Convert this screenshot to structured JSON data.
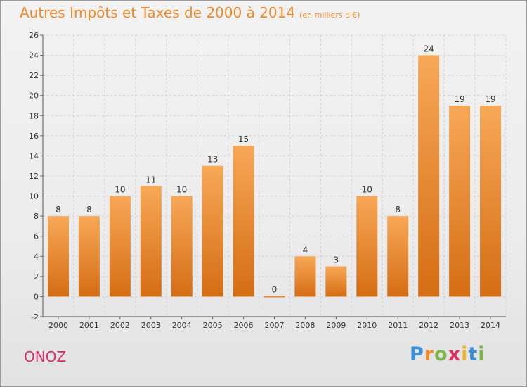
{
  "header": {
    "title": "Autres Impôts et Taxes de 2000 à 2014",
    "subtitle": "(en milliers d'€)"
  },
  "footer": {
    "place": "ONOZ",
    "logo": "Proxiti"
  },
  "colors": {
    "bar_light": "#f7a857",
    "bar_dark": "#d56d14",
    "title": "#f0892a",
    "place": "#dc2e64"
  },
  "chart_data": {
    "type": "bar",
    "title": "Autres Impôts et Taxes de 2000 à 2014",
    "subtitle": "(en milliers d'€)",
    "categories": [
      "2000",
      "2001",
      "2002",
      "2003",
      "2004",
      "2005",
      "2006",
      "2007",
      "2008",
      "2009",
      "2010",
      "2011",
      "2012",
      "2013",
      "2014"
    ],
    "values": [
      8,
      8,
      10,
      11,
      10,
      13,
      15,
      0,
      4,
      3,
      10,
      8,
      24,
      19,
      19
    ],
    "ylim": [
      -2,
      26
    ],
    "yticks": [
      -2,
      0,
      2,
      4,
      6,
      8,
      10,
      12,
      14,
      16,
      18,
      20,
      22,
      24,
      26
    ],
    "grid": true,
    "xlabel": "",
    "ylabel": ""
  }
}
